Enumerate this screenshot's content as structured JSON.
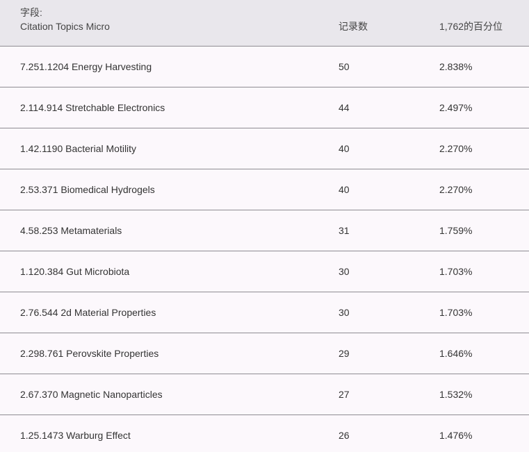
{
  "header": {
    "field_prefix": "字段:",
    "field_name": "Citation Topics Micro",
    "count_label": "记录数",
    "percent_label": "1,762的百分位"
  },
  "rows": [
    {
      "topic": "7.251.1204 Energy Harvesting",
      "count": "50",
      "percent": "2.838%"
    },
    {
      "topic": "2.114.914 Stretchable Electronics",
      "count": "44",
      "percent": "2.497%"
    },
    {
      "topic": "1.42.1190 Bacterial Motility",
      "count": "40",
      "percent": "2.270%"
    },
    {
      "topic": "2.53.371 Biomedical Hydrogels",
      "count": "40",
      "percent": "2.270%"
    },
    {
      "topic": "4.58.253 Metamaterials",
      "count": "31",
      "percent": "1.759%"
    },
    {
      "topic": "1.120.384 Gut Microbiota",
      "count": "30",
      "percent": "1.703%"
    },
    {
      "topic": "2.76.544 2d Material Properties",
      "count": "30",
      "percent": "1.703%"
    },
    {
      "topic": "2.298.761 Perovskite Properties",
      "count": "29",
      "percent": "1.646%"
    },
    {
      "topic": "2.67.370 Magnetic Nanoparticles",
      "count": "27",
      "percent": "1.532%"
    },
    {
      "topic": "1.25.1473 Warburg Effect",
      "count": "26",
      "percent": "1.476%"
    }
  ]
}
